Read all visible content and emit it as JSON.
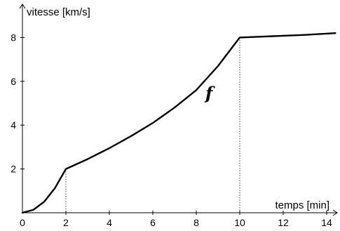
{
  "chart_data": {
    "type": "line",
    "title": "",
    "xlabel": "temps [min]",
    "ylabel": "vitesse [km/s]",
    "curve_label": "f",
    "xlim": [
      0,
      14.4
    ],
    "ylim": [
      0,
      9.3
    ],
    "xticks": [
      0,
      2,
      4,
      6,
      8,
      10,
      12,
      14
    ],
    "yticks": [
      2,
      4,
      6,
      8
    ],
    "grid": false,
    "series": [
      {
        "name": "",
        "x": [
          0,
          0.5,
          1,
          1.5,
          2,
          3,
          4,
          5,
          6,
          7,
          8,
          9,
          10,
          11,
          12,
          13,
          14.4
        ],
        "y": [
          0,
          0.13,
          0.5,
          1.13,
          2,
          2.45,
          2.95,
          3.5,
          4.1,
          4.8,
          5.6,
          6.7,
          8,
          8.04,
          8.08,
          8.12,
          8.2
        ]
      }
    ],
    "guides": [
      {
        "x": 2,
        "y": 2,
        "style": "dotted"
      },
      {
        "x": 10,
        "y": 8,
        "style": "dotted"
      }
    ]
  }
}
